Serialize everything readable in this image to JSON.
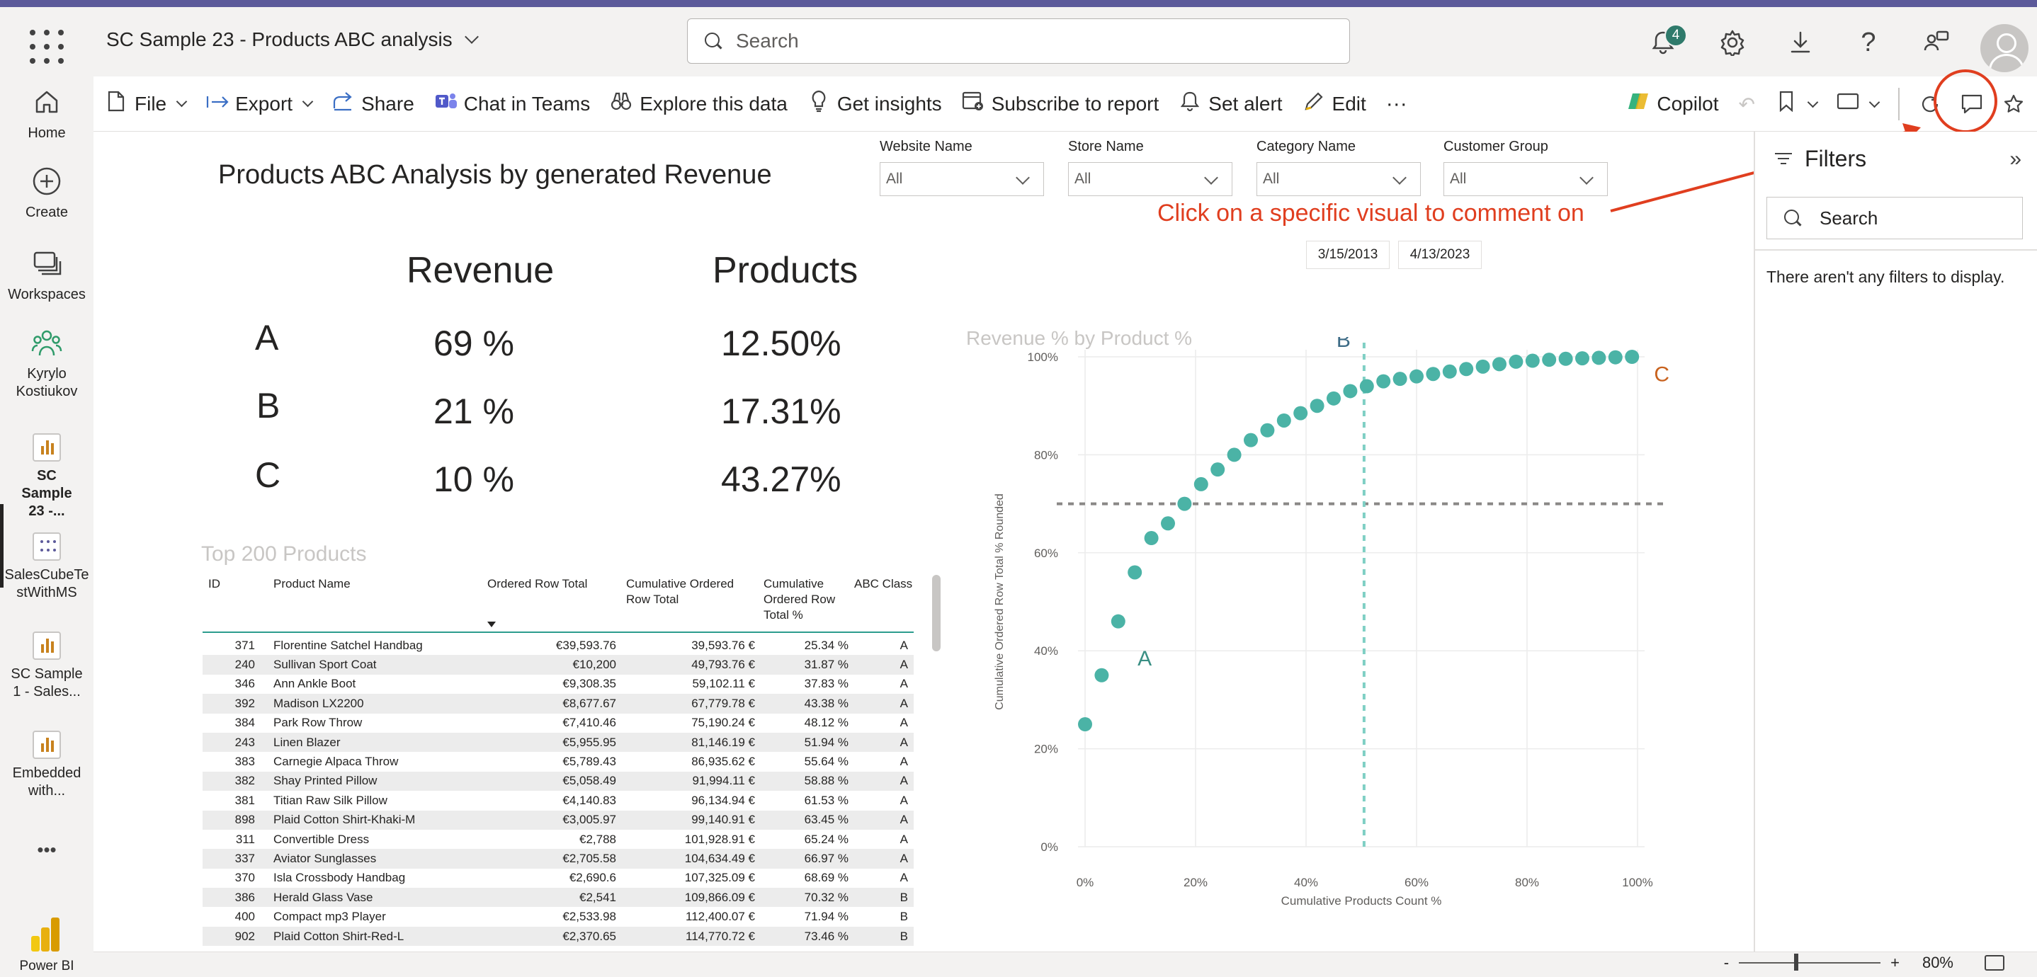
{
  "app": {
    "title": "SC Sample 23 - Products ABC analysis"
  },
  "search": {
    "placeholder": "Search"
  },
  "notifications": {
    "count": "4"
  },
  "icons": {
    "apps": "waffle-icon",
    "notifications": "bell-icon",
    "settings": "gear-icon",
    "download": "download-icon",
    "help": "question-icon",
    "feedback": "people-feedback-icon",
    "comment": "comment-icon",
    "favorite": "star-icon",
    "refresh": "refresh-icon"
  },
  "nav": {
    "items": [
      {
        "label": "Home"
      },
      {
        "label": "Create"
      },
      {
        "label": "Workspaces"
      },
      {
        "label": "Kyrylo Kostiukov"
      },
      {
        "label": "SC Sample 23 -..."
      },
      {
        "label": "SalesCubeTestWithMS"
      },
      {
        "label": "SC Sample 1 - Sales..."
      },
      {
        "label": "Embedded with..."
      }
    ],
    "more": "•••",
    "brand": "Power BI"
  },
  "toolbar": {
    "file": "File",
    "export": "Export",
    "share": "Share",
    "chat": "Chat in Teams",
    "explore": "Explore this data",
    "insights": "Get insights",
    "subscribe": "Subscribe to report",
    "alert": "Set alert",
    "edit": "Edit",
    "more": "···",
    "copilot": "Copilot"
  },
  "report": {
    "title": "Products ABC Analysis by generated Revenue"
  },
  "slicers": [
    {
      "label": "Website Name",
      "value": "All"
    },
    {
      "label": "Store Name",
      "value": "All"
    },
    {
      "label": "Category Name",
      "value": "All"
    },
    {
      "label": "Customer Group",
      "value": "All"
    }
  ],
  "dates": {
    "start": "3/15/2013",
    "end": "4/13/2023"
  },
  "annotation": {
    "text": "Click on a specific visual to comment on"
  },
  "kpi": {
    "revenue_header": "Revenue",
    "products_header": "Products",
    "rows": [
      {
        "class": "A",
        "revenue": "69 %",
        "products": "12.50%"
      },
      {
        "class": "B",
        "revenue": "21 %",
        "products": "17.31%"
      },
      {
        "class": "C",
        "revenue": "10 %",
        "products": "43.27%"
      }
    ]
  },
  "table": {
    "title": "Top 200 Products",
    "headers": {
      "id": "ID",
      "name": "Product Name",
      "ordered": "Ordered Row Total",
      "cum_total_1": "Cumulative Ordered",
      "cum_total_2": "Row Total",
      "cum_pct_1": "Cumulative",
      "cum_pct_2": "Ordered Row",
      "cum_pct_3": "Total %",
      "abc": "ABC Class"
    },
    "rows": [
      {
        "id": "371",
        "name": "Florentine Satchel Handbag",
        "ordered": "€39,593.76",
        "cum": "39,593.76 €",
        "pct": "25.34 %",
        "abc": "A"
      },
      {
        "id": "240",
        "name": "Sullivan Sport Coat",
        "ordered": "€10,200",
        "cum": "49,793.76 €",
        "pct": "31.87 %",
        "abc": "A"
      },
      {
        "id": "346",
        "name": "Ann Ankle Boot",
        "ordered": "€9,308.35",
        "cum": "59,102.11 €",
        "pct": "37.83 %",
        "abc": "A"
      },
      {
        "id": "392",
        "name": "Madison LX2200",
        "ordered": "€8,677.67",
        "cum": "67,779.78 €",
        "pct": "43.38 %",
        "abc": "A"
      },
      {
        "id": "384",
        "name": "Park Row Throw",
        "ordered": "€7,410.46",
        "cum": "75,190.24 €",
        "pct": "48.12 %",
        "abc": "A"
      },
      {
        "id": "243",
        "name": "Linen Blazer",
        "ordered": "€5,955.95",
        "cum": "81,146.19 €",
        "pct": "51.94 %",
        "abc": "A"
      },
      {
        "id": "383",
        "name": "Carnegie Alpaca Throw",
        "ordered": "€5,789.43",
        "cum": "86,935.62 €",
        "pct": "55.64 %",
        "abc": "A"
      },
      {
        "id": "382",
        "name": "Shay Printed Pillow",
        "ordered": "€5,058.49",
        "cum": "91,994.11 €",
        "pct": "58.88 %",
        "abc": "A"
      },
      {
        "id": "381",
        "name": "Titian Raw Silk Pillow",
        "ordered": "€4,140.83",
        "cum": "96,134.94 €",
        "pct": "61.53 %",
        "abc": "A"
      },
      {
        "id": "898",
        "name": "Plaid Cotton Shirt-Khaki-M",
        "ordered": "€3,005.97",
        "cum": "99,140.91 €",
        "pct": "63.45 %",
        "abc": "A"
      },
      {
        "id": "311",
        "name": "Convertible Dress",
        "ordered": "€2,788",
        "cum": "101,928.91 €",
        "pct": "65.24 %",
        "abc": "A"
      },
      {
        "id": "337",
        "name": "Aviator Sunglasses",
        "ordered": "€2,705.58",
        "cum": "104,634.49 €",
        "pct": "66.97 %",
        "abc": "A"
      },
      {
        "id": "370",
        "name": "Isla Crossbody Handbag",
        "ordered": "€2,690.6",
        "cum": "107,325.09 €",
        "pct": "68.69 %",
        "abc": "A"
      },
      {
        "id": "386",
        "name": "Herald Glass Vase",
        "ordered": "€2,541",
        "cum": "109,866.09 €",
        "pct": "70.32 %",
        "abc": "B"
      },
      {
        "id": "400",
        "name": "Compact mp3 Player",
        "ordered": "€2,533.98",
        "cum": "112,400.07 €",
        "pct": "71.94 %",
        "abc": "B"
      },
      {
        "id": "902",
        "name": "Plaid Cotton Shirt-Red-L",
        "ordered": "€2,370.65",
        "cum": "114,770.72 €",
        "pct": "73.46 %",
        "abc": "B"
      }
    ]
  },
  "chart_data": {
    "type": "scatter",
    "title": "Revenue % by Product %",
    "xlabel": "Cumulative Products Count %",
    "ylabel": "Cumulative Ordered Row Total % Rounded",
    "xlim": [
      0,
      100
    ],
    "ylim": [
      0,
      100
    ],
    "xticks": [
      "0%",
      "20%",
      "40%",
      "60%",
      "80%",
      "100%"
    ],
    "yticks": [
      "0%",
      "20%",
      "40%",
      "60%",
      "80%",
      "100%"
    ],
    "grid": true,
    "reference_lines": {
      "horizontal_y": 70,
      "vertical_x": 50.5
    },
    "class_labels": [
      {
        "text": "A",
        "x": 9.5,
        "y": 37
      },
      {
        "text": "B",
        "x": 45.5,
        "y": 102
      },
      {
        "text": "C",
        "x": 103,
        "y": 95
      }
    ],
    "point_color": "#4bb3a6",
    "x": [
      0,
      3,
      6,
      9,
      12,
      15,
      18,
      21,
      24,
      27,
      30,
      33,
      36,
      39,
      42,
      45,
      48,
      51,
      54,
      57,
      60,
      63,
      66,
      69,
      72,
      75,
      78,
      81,
      84,
      87,
      90,
      93,
      96,
      99
    ],
    "y": [
      25,
      35,
      46,
      56,
      63,
      66,
      70,
      74,
      77,
      80,
      83,
      85,
      87,
      88.5,
      90,
      91.5,
      93,
      94,
      95,
      95.5,
      96,
      96.5,
      97,
      97.5,
      98,
      98.5,
      99,
      99.2,
      99.4,
      99.6,
      99.7,
      99.8,
      99.9,
      100
    ]
  },
  "filters": {
    "title": "Filters",
    "search_placeholder": "Search",
    "empty": "There aren't any filters to display."
  },
  "status": {
    "zoom": "80%"
  }
}
